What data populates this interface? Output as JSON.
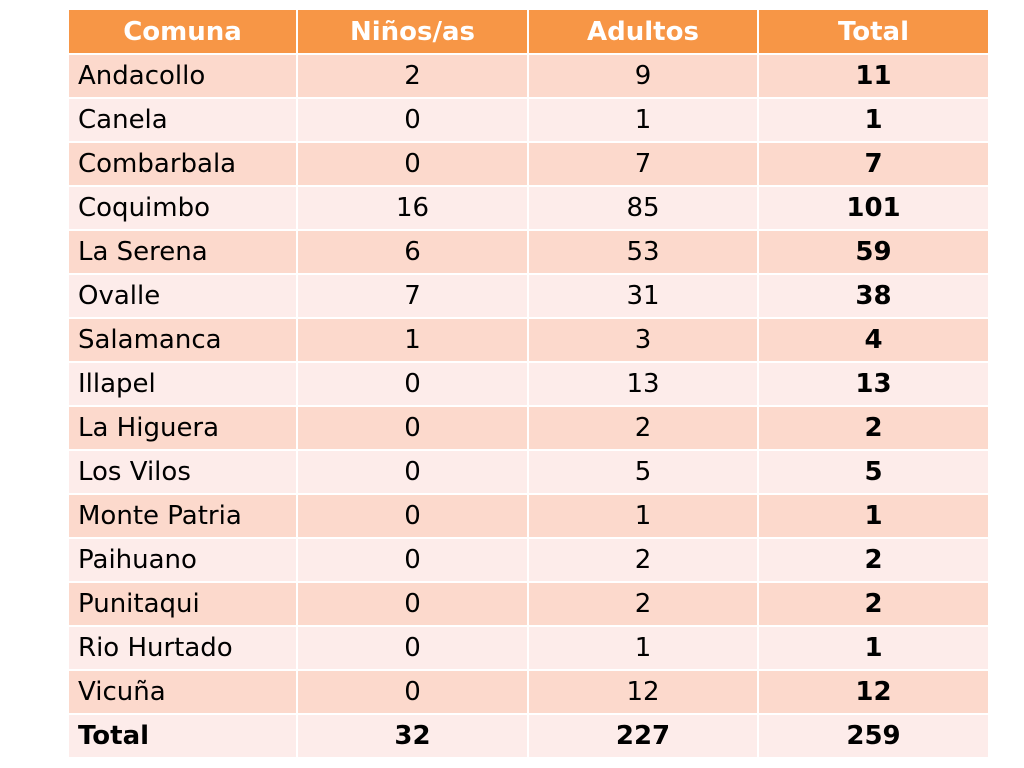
{
  "table": {
    "headers": [
      "Comuna",
      "Niños/as",
      "Adultos",
      "Total"
    ],
    "rows": [
      {
        "comuna": "Andacollo",
        "ninos": "2",
        "adultos": "9",
        "total": "11"
      },
      {
        "comuna": "Canela",
        "ninos": "0",
        "adultos": "1",
        "total": "1"
      },
      {
        "comuna": "Combarbala",
        "ninos": "0",
        "adultos": "7",
        "total": "7"
      },
      {
        "comuna": "Coquimbo",
        "ninos": "16",
        "adultos": "85",
        "total": "101"
      },
      {
        "comuna": "La Serena",
        "ninos": "6",
        "adultos": "53",
        "total": "59"
      },
      {
        "comuna": "Ovalle",
        "ninos": "7",
        "adultos": "31",
        "total": "38"
      },
      {
        "comuna": "Salamanca",
        "ninos": "1",
        "adultos": "3",
        "total": "4"
      },
      {
        "comuna": "Illapel",
        "ninos": "0",
        "adultos": "13",
        "total": "13"
      },
      {
        "comuna": "La Higuera",
        "ninos": "0",
        "adultos": "2",
        "total": "2"
      },
      {
        "comuna": "Los Vilos",
        "ninos": "0",
        "adultos": "5",
        "total": "5"
      },
      {
        "comuna": "Monte Patria",
        "ninos": "0",
        "adultos": "1",
        "total": "1"
      },
      {
        "comuna": "Paihuano",
        "ninos": "0",
        "adultos": "2",
        "total": "2"
      },
      {
        "comuna": "Punitaqui",
        "ninos": "0",
        "adultos": "2",
        "total": "2"
      },
      {
        "comuna": "Rio Hurtado",
        "ninos": "0",
        "adultos": "1",
        "total": "1"
      },
      {
        "comuna": "Vicuña",
        "ninos": "0",
        "adultos": "12",
        "total": "12"
      }
    ],
    "totals": {
      "label": "Total",
      "ninos": "32",
      "adultos": "227",
      "total": "259"
    }
  },
  "colors": {
    "header_bg": "#f79646",
    "header_text": "#ffffff",
    "row_dark": "#fcd9cc",
    "row_light": "#fdecea",
    "grid_line": "#ffffff"
  }
}
